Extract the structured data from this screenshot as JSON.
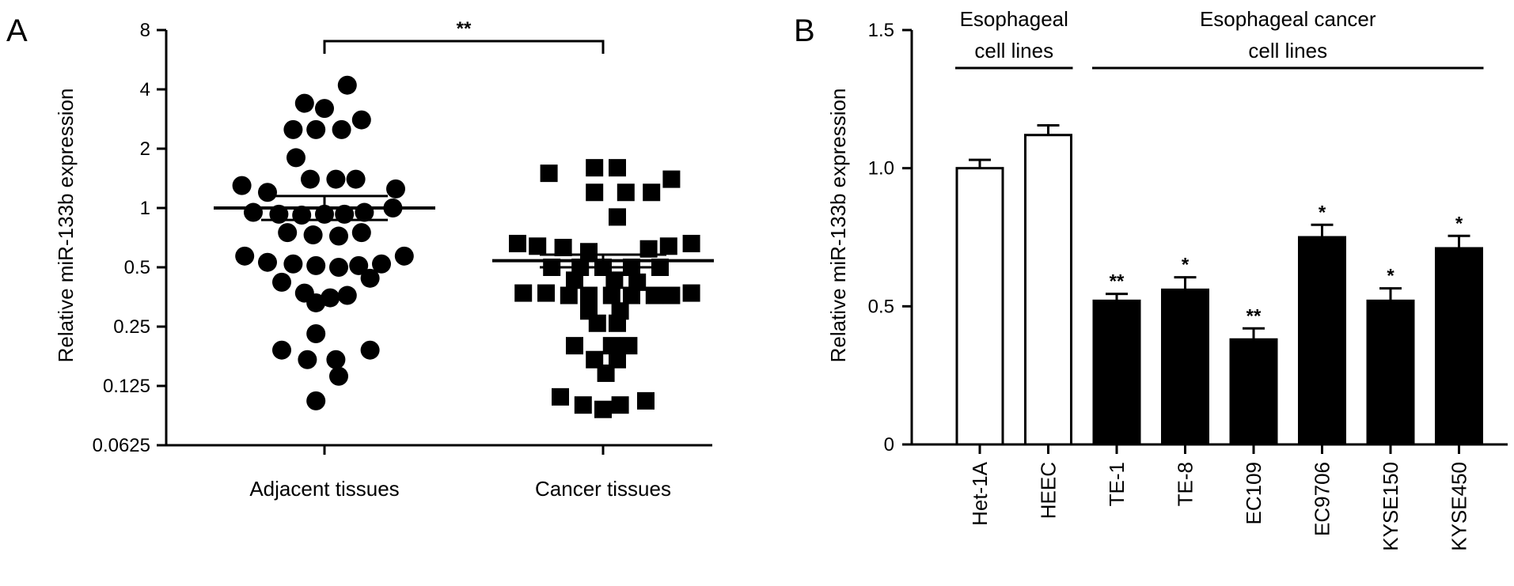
{
  "colors": {
    "ink": "#000000",
    "paper": "#ffffff"
  },
  "panels": {
    "a": {
      "letter": "A"
    },
    "b": {
      "letter": "B"
    }
  },
  "chart_data": [
    {
      "type": "scatter",
      "panel": "A",
      "ylabel": "Relative miR-133b expression",
      "y_scale": "log2",
      "ylim": [
        0.0625,
        8
      ],
      "yticks": [
        "0.0625",
        "0.125",
        "0.25",
        "0.5",
        "1",
        "2",
        "4",
        "8"
      ],
      "ytick_values": [
        0.0625,
        0.125,
        0.25,
        0.5,
        1,
        2,
        4,
        8
      ],
      "categories": [
        "Adjacent tissues",
        "Cancer tissues"
      ],
      "groups": [
        {
          "category": "Adjacent tissues",
          "marker": "circle",
          "mean": 1.0,
          "sem": [
            0.87,
            1.15
          ],
          "points": [
            {
              "x": 0.08,
              "y": 4.2
            },
            {
              "x": -0.07,
              "y": 3.4
            },
            {
              "x": 0.0,
              "y": 3.2
            },
            {
              "x": 0.13,
              "y": 2.8
            },
            {
              "x": -0.11,
              "y": 2.5
            },
            {
              "x": -0.03,
              "y": 2.5
            },
            {
              "x": 0.06,
              "y": 2.5
            },
            {
              "x": -0.1,
              "y": 1.8
            },
            {
              "x": -0.29,
              "y": 1.3
            },
            {
              "x": -0.2,
              "y": 1.2
            },
            {
              "x": -0.05,
              "y": 1.4
            },
            {
              "x": 0.04,
              "y": 1.4
            },
            {
              "x": 0.11,
              "y": 1.4
            },
            {
              "x": 0.25,
              "y": 1.25
            },
            {
              "x": -0.25,
              "y": 0.95
            },
            {
              "x": -0.16,
              "y": 0.93
            },
            {
              "x": -0.08,
              "y": 0.92
            },
            {
              "x": 0.0,
              "y": 0.93
            },
            {
              "x": 0.07,
              "y": 0.93
            },
            {
              "x": 0.14,
              "y": 0.95
            },
            {
              "x": 0.24,
              "y": 1.0
            },
            {
              "x": -0.13,
              "y": 0.75
            },
            {
              "x": -0.04,
              "y": 0.73
            },
            {
              "x": 0.05,
              "y": 0.72
            },
            {
              "x": 0.13,
              "y": 0.75
            },
            {
              "x": -0.28,
              "y": 0.57
            },
            {
              "x": -0.2,
              "y": 0.53
            },
            {
              "x": -0.11,
              "y": 0.52
            },
            {
              "x": -0.03,
              "y": 0.51
            },
            {
              "x": 0.05,
              "y": 0.5
            },
            {
              "x": 0.12,
              "y": 0.51
            },
            {
              "x": 0.2,
              "y": 0.52
            },
            {
              "x": 0.28,
              "y": 0.57
            },
            {
              "x": -0.15,
              "y": 0.42
            },
            {
              "x": 0.16,
              "y": 0.44
            },
            {
              "x": -0.07,
              "y": 0.37
            },
            {
              "x": 0.02,
              "y": 0.35
            },
            {
              "x": 0.08,
              "y": 0.36
            },
            {
              "x": -0.03,
              "y": 0.33
            },
            {
              "x": -0.03,
              "y": 0.23
            },
            {
              "x": -0.15,
              "y": 0.19
            },
            {
              "x": -0.06,
              "y": 0.17
            },
            {
              "x": 0.04,
              "y": 0.17
            },
            {
              "x": 0.16,
              "y": 0.19
            },
            {
              "x": 0.05,
              "y": 0.14
            },
            {
              "x": -0.03,
              "y": 0.105
            }
          ]
        },
        {
          "category": "Cancer tissues",
          "marker": "square",
          "mean": 0.54,
          "sem": [
            0.5,
            0.58
          ],
          "points": [
            {
              "x": -0.03,
              "y": 1.6
            },
            {
              "x": 0.05,
              "y": 1.6
            },
            {
              "x": -0.19,
              "y": 1.5
            },
            {
              "x": 0.24,
              "y": 1.4
            },
            {
              "x": -0.03,
              "y": 1.2
            },
            {
              "x": 0.08,
              "y": 1.2
            },
            {
              "x": 0.17,
              "y": 1.2
            },
            {
              "x": 0.05,
              "y": 0.9
            },
            {
              "x": -0.3,
              "y": 0.66
            },
            {
              "x": -0.23,
              "y": 0.64
            },
            {
              "x": -0.14,
              "y": 0.63
            },
            {
              "x": -0.05,
              "y": 0.6
            },
            {
              "x": 0.16,
              "y": 0.62
            },
            {
              "x": 0.23,
              "y": 0.64
            },
            {
              "x": 0.31,
              "y": 0.66
            },
            {
              "x": -0.18,
              "y": 0.5
            },
            {
              "x": -0.08,
              "y": 0.5
            },
            {
              "x": 0.0,
              "y": 0.5
            },
            {
              "x": 0.1,
              "y": 0.5
            },
            {
              "x": 0.2,
              "y": 0.5
            },
            {
              "x": -0.1,
              "y": 0.43
            },
            {
              "x": 0.04,
              "y": 0.43
            },
            {
              "x": 0.12,
              "y": 0.42
            },
            {
              "x": -0.28,
              "y": 0.37
            },
            {
              "x": -0.2,
              "y": 0.37
            },
            {
              "x": -0.12,
              "y": 0.36
            },
            {
              "x": -0.05,
              "y": 0.36
            },
            {
              "x": 0.03,
              "y": 0.36
            },
            {
              "x": 0.1,
              "y": 0.36
            },
            {
              "x": 0.18,
              "y": 0.36
            },
            {
              "x": 0.24,
              "y": 0.36
            },
            {
              "x": 0.31,
              "y": 0.37
            },
            {
              "x": -0.05,
              "y": 0.3
            },
            {
              "x": 0.06,
              "y": 0.3
            },
            {
              "x": -0.02,
              "y": 0.26
            },
            {
              "x": 0.05,
              "y": 0.26
            },
            {
              "x": -0.1,
              "y": 0.2
            },
            {
              "x": 0.03,
              "y": 0.2
            },
            {
              "x": 0.09,
              "y": 0.2
            },
            {
              "x": -0.03,
              "y": 0.17
            },
            {
              "x": 0.05,
              "y": 0.17
            },
            {
              "x": 0.01,
              "y": 0.145
            },
            {
              "x": -0.15,
              "y": 0.11
            },
            {
              "x": -0.07,
              "y": 0.1
            },
            {
              "x": 0.0,
              "y": 0.095
            },
            {
              "x": 0.06,
              "y": 0.1
            },
            {
              "x": 0.15,
              "y": 0.105
            }
          ]
        }
      ],
      "significance": {
        "label": "**",
        "between": [
          "Adjacent tissues",
          "Cancer tissues"
        ]
      }
    },
    {
      "type": "bar",
      "panel": "B",
      "ylabel": "Relative miR-133b expression",
      "ylim": [
        0,
        1.5
      ],
      "yticks": [
        "0",
        "0.5",
        "1.0",
        "1.5"
      ],
      "ytick_values": [
        0,
        0.5,
        1.0,
        1.5
      ],
      "categories": [
        "Het-1A",
        "HEEC",
        "TE-1",
        "TE-8",
        "EC109",
        "EC9706",
        "KYSE150",
        "KYSE450"
      ],
      "values": [
        1.0,
        1.12,
        0.52,
        0.56,
        0.38,
        0.75,
        0.52,
        0.71
      ],
      "errors": [
        0.03,
        0.035,
        0.025,
        0.045,
        0.04,
        0.045,
        0.045,
        0.045
      ],
      "fills": [
        "#ffffff",
        "#ffffff",
        "#000000",
        "#000000",
        "#000000",
        "#000000",
        "#000000",
        "#000000"
      ],
      "significance": [
        "",
        "",
        "**",
        "*",
        "**",
        "*",
        "*",
        "*"
      ],
      "groups": [
        {
          "lines": [
            "Esophageal",
            "cell lines"
          ],
          "from": 0,
          "to": 1
        },
        {
          "lines": [
            "Esophageal cancer",
            "cell lines"
          ],
          "from": 2,
          "to": 7
        }
      ]
    }
  ]
}
